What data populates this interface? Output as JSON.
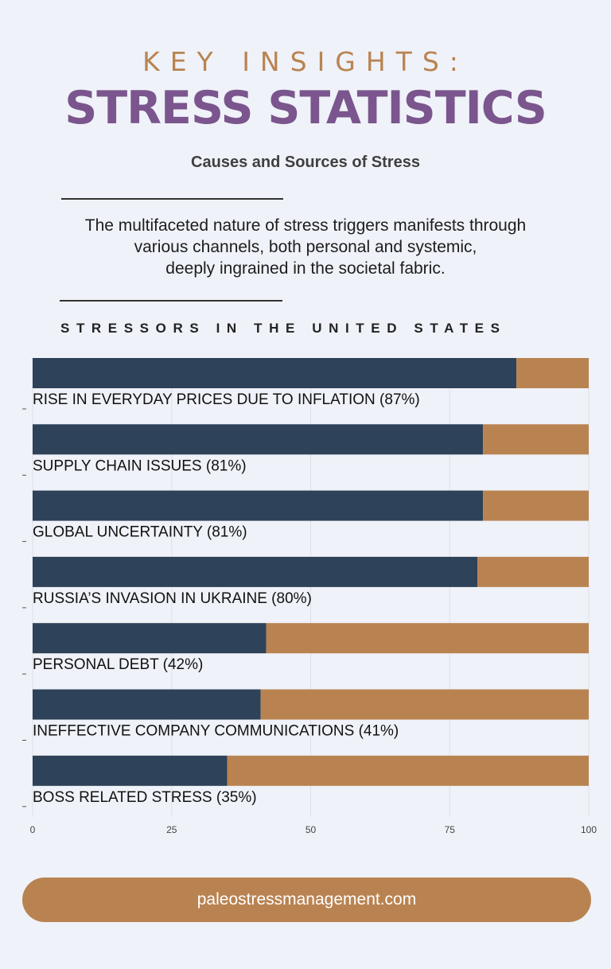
{
  "header": {
    "kicker": "KEY INSIGHTS:",
    "title": "STRESS STATISTICS",
    "subtitle": "Causes and Sources of Stress"
  },
  "intro": {
    "lines": [
      "The multifaceted nature of stress triggers manifests through",
      "various channels, both personal and systemic,",
      "deeply ingrained in the societal fabric."
    ]
  },
  "colors": {
    "background": "#eff2f8",
    "primary_bar": "#2e4259",
    "remainder_bar": "#b98351",
    "title_purple": "#7b558d",
    "accent_orange": "#b98351"
  },
  "chart_data": {
    "type": "bar",
    "orientation": "horizontal",
    "stacked": true,
    "title": "STRESSORS IN THE UNITED STATES",
    "categories": [
      "RISE IN EVERYDAY PRICES DUE TO INFLATION  (87%)",
      "SUPPLY CHAIN ISSUES  (81%)",
      "GLOBAL UNCERTAINTY (81%)",
      "RUSSIA’S INVASION IN UKRAINE (80%)",
      "PERSONAL DEBT (42%)",
      "INEFFECTIVE COMPANY COMMUNICATIONS (41%)",
      "BOSS RELATED STRESS (35%)"
    ],
    "series": [
      {
        "values": [
          87,
          81,
          81,
          80,
          42,
          41,
          35
        ]
      },
      {
        "values": [
          13,
          19,
          19,
          20,
          58,
          59,
          65
        ]
      }
    ],
    "xlim": [
      0,
      100
    ],
    "xticks": [
      "0",
      "25",
      "50",
      "75",
      "100"
    ],
    "grid": true
  },
  "footer": {
    "url": "paleostressmanagement.com"
  }
}
